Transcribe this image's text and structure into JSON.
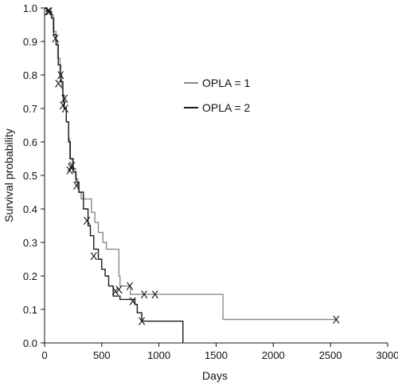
{
  "chart_data": {
    "type": "line",
    "xlabel": "Days",
    "ylabel": "Survival probability",
    "xlim": [
      0,
      3000
    ],
    "ylim": [
      0,
      1.0
    ],
    "x_ticks": [
      "0",
      "500",
      "1000",
      "1500",
      "2000",
      "2500",
      "3000"
    ],
    "y_ticks": [
      "0.0",
      "0.1",
      "0.2",
      "0.3",
      "0.4",
      "0.5",
      "0.6",
      "0.7",
      "0.8",
      "0.9",
      "1.0"
    ],
    "x_tick_values": [
      0,
      500,
      1000,
      1500,
      2000,
      2500,
      3000
    ],
    "y_tick_values": [
      0,
      0.1,
      0.2,
      0.3,
      0.4,
      0.5,
      0.6,
      0.7,
      0.8,
      0.9,
      1.0
    ],
    "grid": false,
    "legend_position": "upper-right",
    "censor_marker": "X",
    "series": [
      {
        "name": "OPLA = 1",
        "color": "#8a8a8a",
        "steps": [
          [
            0,
            1.0
          ],
          [
            15,
            0.99
          ],
          [
            50,
            0.98
          ],
          [
            75,
            0.93
          ],
          [
            100,
            0.9
          ],
          [
            115,
            0.85
          ],
          [
            135,
            0.8
          ],
          [
            150,
            0.76
          ],
          [
            160,
            0.72
          ],
          [
            175,
            0.7
          ],
          [
            190,
            0.66
          ],
          [
            210,
            0.61
          ],
          [
            220,
            0.55
          ],
          [
            245,
            0.52
          ],
          [
            270,
            0.49
          ],
          [
            290,
            0.46
          ],
          [
            300,
            0.45
          ],
          [
            320,
            0.43
          ],
          [
            400,
            0.43
          ],
          [
            410,
            0.39
          ],
          [
            440,
            0.36
          ],
          [
            470,
            0.33
          ],
          [
            510,
            0.3
          ],
          [
            540,
            0.28
          ],
          [
            620,
            0.28
          ],
          [
            650,
            0.2
          ],
          [
            660,
            0.17
          ],
          [
            700,
            0.17
          ],
          [
            750,
            0.145
          ],
          [
            1550,
            0.145
          ],
          [
            1560,
            0.07
          ],
          [
            2560,
            0.07
          ]
        ],
        "censored": [
          [
            30,
            0.99
          ],
          [
            95,
            0.91
          ],
          [
            120,
            0.775
          ],
          [
            140,
            0.8
          ],
          [
            160,
            0.71
          ],
          [
            175,
            0.73
          ],
          [
            240,
            0.53
          ],
          [
            280,
            0.47
          ],
          [
            650,
            0.16
          ],
          [
            745,
            0.17
          ],
          [
            870,
            0.145
          ],
          [
            965,
            0.145
          ],
          [
            2550,
            0.07
          ]
        ]
      },
      {
        "name": "OPLA = 2",
        "color": "#1a1a1a",
        "steps": [
          [
            0,
            1.0
          ],
          [
            20,
            0.99
          ],
          [
            60,
            0.97
          ],
          [
            80,
            0.92
          ],
          [
            100,
            0.89
          ],
          [
            120,
            0.83
          ],
          [
            140,
            0.78
          ],
          [
            160,
            0.74
          ],
          [
            170,
            0.7
          ],
          [
            190,
            0.66
          ],
          [
            210,
            0.6
          ],
          [
            225,
            0.55
          ],
          [
            250,
            0.51
          ],
          [
            275,
            0.48
          ],
          [
            300,
            0.45
          ],
          [
            340,
            0.4
          ],
          [
            380,
            0.35
          ],
          [
            400,
            0.32
          ],
          [
            430,
            0.28
          ],
          [
            470,
            0.25
          ],
          [
            500,
            0.22
          ],
          [
            530,
            0.2
          ],
          [
            560,
            0.17
          ],
          [
            600,
            0.14
          ],
          [
            660,
            0.13
          ],
          [
            780,
            0.13
          ],
          [
            790,
            0.115
          ],
          [
            810,
            0.09
          ],
          [
            850,
            0.065
          ],
          [
            1210,
            0.065
          ],
          [
            1210,
            0.0
          ]
        ],
        "censored": [
          [
            40,
            0.99
          ],
          [
            180,
            0.7
          ],
          [
            220,
            0.515
          ],
          [
            230,
            0.525
          ],
          [
            370,
            0.365
          ],
          [
            430,
            0.26
          ],
          [
            620,
            0.155
          ],
          [
            770,
            0.125
          ],
          [
            850,
            0.065
          ]
        ]
      }
    ]
  }
}
